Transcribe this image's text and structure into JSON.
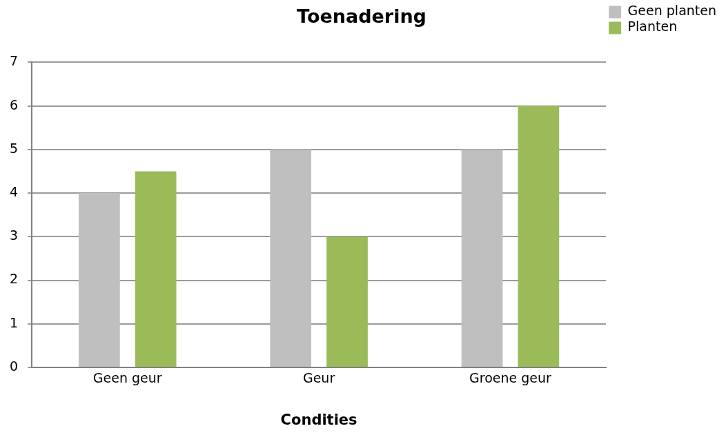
{
  "chart_data": {
    "type": "bar",
    "title": "Toenadering",
    "xlabel": "Condities",
    "categories": [
      "Geen geur",
      "Geur",
      "Groene geur"
    ],
    "series": [
      {
        "name": "Geen planten",
        "color": "#bfbfbf",
        "values": [
          4,
          5,
          5
        ]
      },
      {
        "name": "Planten",
        "color": "#9bbb59",
        "values": [
          4.5,
          3,
          6
        ]
      }
    ],
    "ylim": [
      0,
      7
    ],
    "yticks": [
      0,
      1,
      2,
      3,
      4,
      5,
      6,
      7
    ],
    "grid": "y",
    "legend": "top right"
  }
}
